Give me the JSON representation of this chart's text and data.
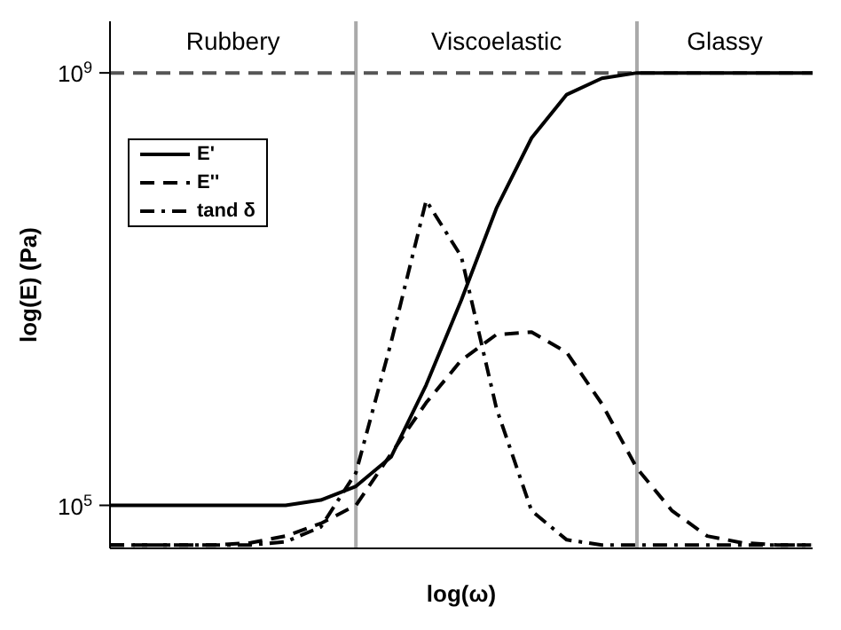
{
  "chart_data": {
    "type": "line",
    "xlabel": "log(ω)",
    "ylabel": "log(E) (Pa)",
    "log": "y",
    "categories": [
      null,
      null,
      null,
      null,
      null,
      null,
      null,
      null,
      null,
      null,
      null,
      null,
      null,
      null,
      null,
      null,
      null,
      null,
      null,
      null,
      null
    ],
    "ylim": [
      40000,
      3000000000
    ],
    "yticks": [
      {
        "value": 100000,
        "label": "10$^{5}$"
      },
      {
        "value": 1000000000,
        "label": "10$^{9}$"
      }
    ],
    "tick_labels": "y",
    "legend": "top left",
    "marker": "none",
    "series": [
      {
        "name": "E'",
        "color": "#000000",
        "line_style": "solid",
        "values": [
          100000,
          100000,
          100000,
          100000,
          100000,
          100000,
          112000,
          150000,
          280000,
          1300000,
          7900000,
          56000000,
          250000000,
          630000000,
          890000000,
          1000000000,
          1000000000,
          1000000000,
          1000000000,
          1000000000,
          1000000000
        ]
      },
      {
        "name": "E''",
        "color": "#000000",
        "line_style": "dashed",
        "values": [
          43000,
          43000,
          43000,
          43000,
          45000,
          52000,
          68000,
          100000,
          300000,
          890000,
          2200000,
          3800000,
          4000000,
          2600000,
          870000,
          220000,
          89000,
          52000,
          45000,
          43000,
          43000
        ]
      },
      {
        "name": "tand δ",
        "color": "#000000",
        "line_style": "dashdot",
        "values": [
          43000,
          43000,
          43000,
          43000,
          43000,
          46000,
          63000,
          200000,
          3200000,
          66000000,
          20000000,
          790000,
          89000,
          48000,
          43000,
          43000,
          43000,
          43000,
          43000,
          43000,
          43000
        ]
      }
    ],
    "ref_lines": [
      {
        "axis": "y",
        "value": 1000000000,
        "color": "#555555",
        "line_style": "dashed"
      }
    ],
    "annotations": [
      "Rubbery",
      "Viscoelastic",
      "Glassy"
    ]
  }
}
